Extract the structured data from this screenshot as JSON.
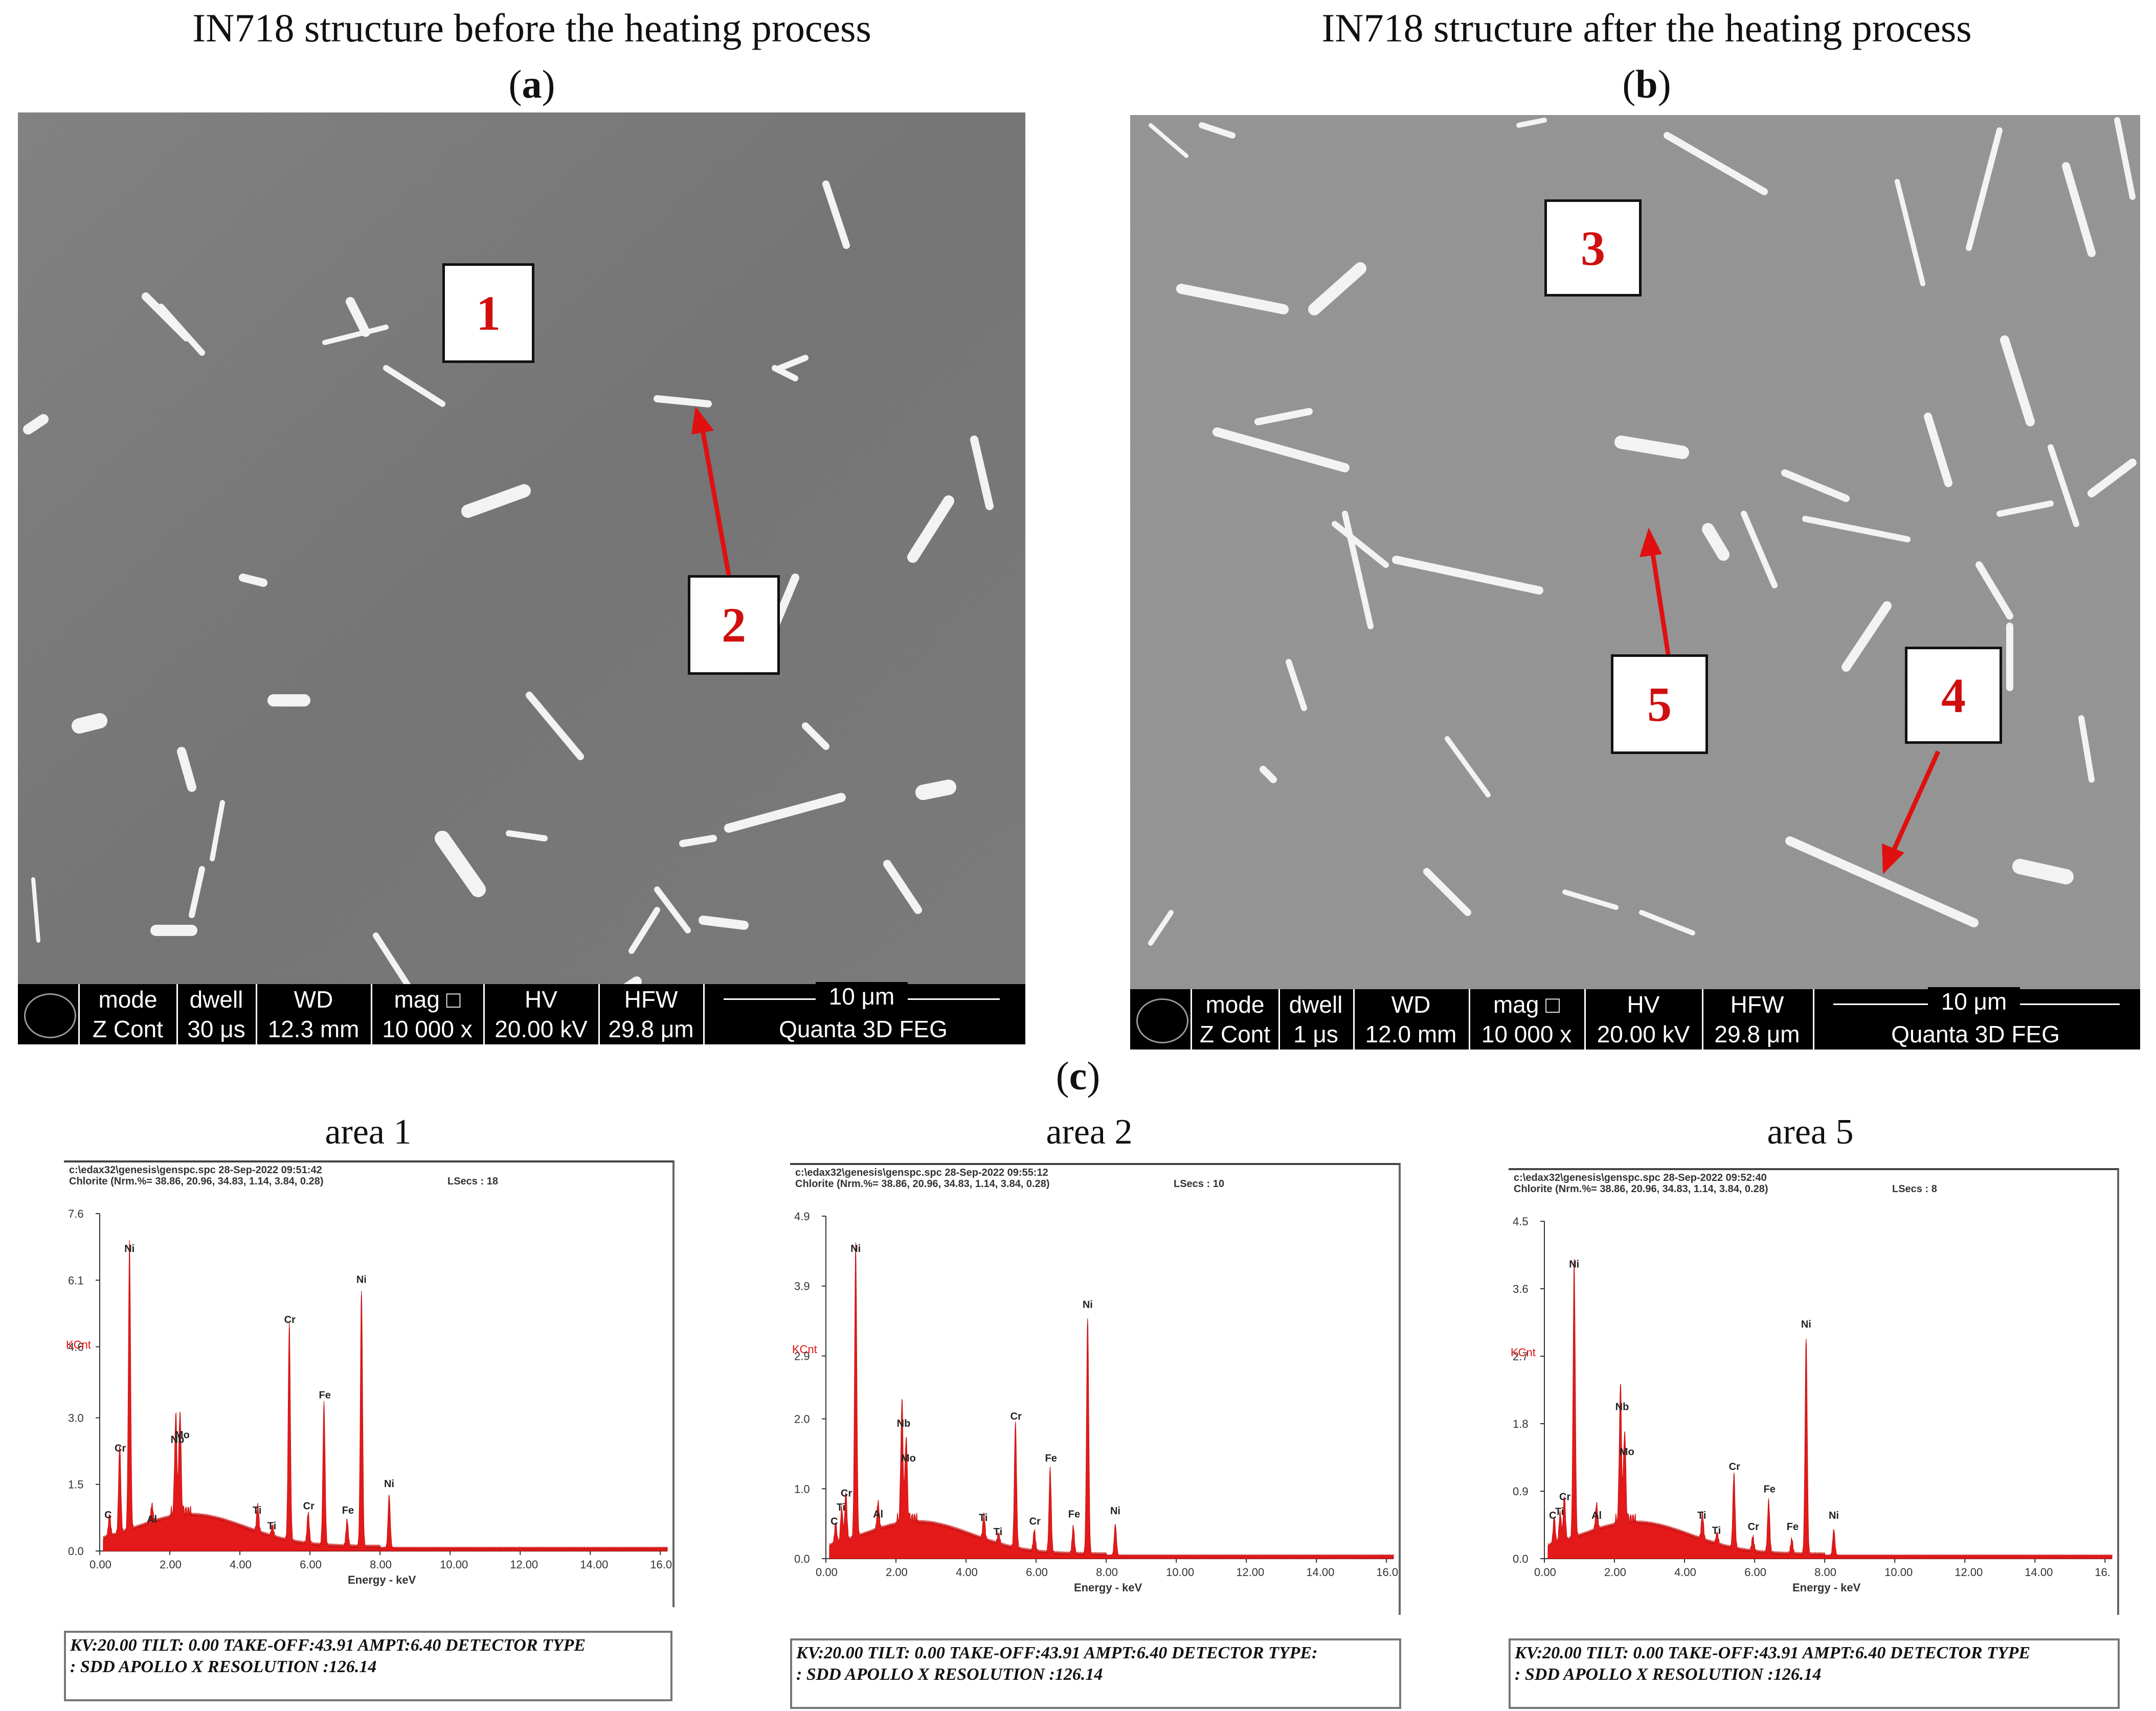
{
  "panels": {
    "a": {
      "header": "IN718 structure before the heating process",
      "label": "a"
    },
    "b": {
      "header": "IN718 structure after the heating process",
      "label": "b"
    },
    "c": {
      "label": "c"
    }
  },
  "sem_a": {
    "markers": [
      "1",
      "2"
    ],
    "databar": {
      "headers": [
        "mode",
        "dwell",
        "WD",
        "mag □",
        "HV",
        "HFW"
      ],
      "values": [
        "Z Cont",
        "30 μs",
        "12.3 mm",
        "10 000 x",
        "20.00 kV",
        "29.8 μm"
      ],
      "scale": "10 μm",
      "instrument": "Quanta 3D FEG"
    }
  },
  "sem_b": {
    "markers": [
      "3",
      "4",
      "5"
    ],
    "databar": {
      "headers": [
        "mode",
        "dwell",
        "WD",
        "mag □",
        "HV",
        "HFW"
      ],
      "values": [
        "Z Cont",
        "1 μs",
        "12.0 mm",
        "10 000 x",
        "20.00 kV",
        "29.8 μm"
      ],
      "scale": "10 μm",
      "instrument": "Quanta 3D FEG"
    }
  },
  "eds": [
    {
      "title": "area 1",
      "path": "c:\\edax32\\genesis\\genspc.spc 28-Sep-2022 09:51:42",
      "chlorite": "Chlorite (Nrm.%= 38.86, 20.96, 34.83, 1.14, 3.84, 0.28)",
      "lsecs": "LSecs : 18",
      "y_ticks": [
        "7.6",
        "6.1",
        "4.6",
        "3.0",
        "1.5",
        "0.0"
      ],
      "y_max": 7.6,
      "kcnt": "KCnt",
      "x_ticks": [
        "0.00",
        "2.00",
        "4.00",
        "6.00",
        "8.00",
        "10.00",
        "12.00",
        "14.00",
        "16.0"
      ],
      "xlabel": "Energy - keV",
      "peaks": [
        {
          "label": "Ni",
          "keV": 0.85,
          "value": 6.6
        },
        {
          "label": "C",
          "keV": 0.28,
          "value": 0.6
        },
        {
          "label": "Cr",
          "keV": 0.57,
          "value": 2.1
        },
        {
          "label": "Al",
          "keV": 1.49,
          "value": 0.5
        },
        {
          "label": "Mo",
          "keV": 2.29,
          "value": 2.4
        },
        {
          "label": "Nb",
          "keV": 2.17,
          "value": 2.3
        },
        {
          "label": "Ti",
          "keV": 4.51,
          "value": 0.7
        },
        {
          "label": "Ti",
          "keV": 4.93,
          "value": 0.35
        },
        {
          "label": "Cr",
          "keV": 5.41,
          "value": 5.0
        },
        {
          "label": "Cr",
          "keV": 5.95,
          "value": 0.8
        },
        {
          "label": "Fe",
          "keV": 6.4,
          "value": 3.3
        },
        {
          "label": "Fe",
          "keV": 7.06,
          "value": 0.7
        },
        {
          "label": "Ni",
          "keV": 7.47,
          "value": 5.9
        },
        {
          "label": "Ni",
          "keV": 8.26,
          "value": 1.3
        }
      ],
      "footer1": "KV:20.00  TILT: 0.00  TAKE-OFF:43.91  AMPT:6.40  DETECTOR TYPE",
      "footer2": ": SDD APOLLO X  RESOLUTION :126.14"
    },
    {
      "title": "area 2",
      "path": "c:\\edax32\\genesis\\genspc.spc 28-Sep-2022 09:55:12",
      "chlorite": "Chlorite (Nrm.%= 38.86, 20.96, 34.83, 1.14, 3.84, 0.28)",
      "lsecs": "LSecs : 10",
      "y_ticks": [
        "4.9",
        "3.9",
        "2.9",
        "2.0",
        "1.0",
        "0.0"
      ],
      "y_max": 4.9,
      "kcnt": "KCnt",
      "x_ticks": [
        "0.00",
        "2.00",
        "4.00",
        "6.00",
        "8.00",
        "10.00",
        "12.00",
        "14.00",
        "16.0"
      ],
      "xlabel": "Energy - keV",
      "peaks": [
        {
          "label": "Ni",
          "keV": 0.85,
          "value": 4.3
        },
        {
          "label": "C",
          "keV": 0.28,
          "value": 0.4
        },
        {
          "label": "Ti",
          "keV": 0.45,
          "value": 0.6
        },
        {
          "label": "Cr",
          "keV": 0.57,
          "value": 0.8
        },
        {
          "label": "Al",
          "keV": 1.49,
          "value": 0.5
        },
        {
          "label": "Nb",
          "keV": 2.17,
          "value": 1.8
        },
        {
          "label": "Mo",
          "keV": 2.29,
          "value": 1.3
        },
        {
          "label": "Ti",
          "keV": 4.51,
          "value": 0.45
        },
        {
          "label": "Ti",
          "keV": 4.93,
          "value": 0.25
        },
        {
          "label": "Cr",
          "keV": 5.41,
          "value": 1.9
        },
        {
          "label": "Cr",
          "keV": 5.95,
          "value": 0.4
        },
        {
          "label": "Fe",
          "keV": 6.4,
          "value": 1.3
        },
        {
          "label": "Fe",
          "keV": 7.06,
          "value": 0.5
        },
        {
          "label": "Ni",
          "keV": 7.47,
          "value": 3.5
        },
        {
          "label": "Ni",
          "keV": 8.26,
          "value": 0.55
        }
      ],
      "footer1": "KV:20.00  TILT: 0.00  TAKE-OFF:43.91  AMPT:6.40  DETECTOR TYPE:",
      "footer2": ": SDD APOLLO X  RESOLUTION :126.14"
    },
    {
      "title": "area 5",
      "path": "c:\\edax32\\genesis\\genspc.spc 28-Sep-2022 09:52:40",
      "chlorite": "Chlorite (Nrm.%= 38.86, 20.96, 34.83, 1.14, 3.84, 0.28)",
      "lsecs": "LSecs : 8",
      "y_ticks": [
        "4.5",
        "3.6",
        "2.7",
        "1.8",
        "0.9",
        "0.0"
      ],
      "y_max": 4.5,
      "kcnt": "KCnt",
      "x_ticks": [
        "0.00",
        "2.00",
        "4.00",
        "6.00",
        "8.00",
        "10.00",
        "12.00",
        "14.00",
        "16."
      ],
      "xlabel": "Energy - keV",
      "peaks": [
        {
          "label": "Ni",
          "keV": 0.85,
          "value": 3.8
        },
        {
          "label": "C",
          "keV": 0.28,
          "value": 0.45
        },
        {
          "label": "Ti",
          "keV": 0.45,
          "value": 0.5
        },
        {
          "label": "Cr",
          "keV": 0.57,
          "value": 0.7
        },
        {
          "label": "Al",
          "keV": 1.49,
          "value": 0.45
        },
        {
          "label": "Nb",
          "keV": 2.17,
          "value": 1.9
        },
        {
          "label": "Mo",
          "keV": 2.29,
          "value": 1.3
        },
        {
          "label": "Ti",
          "keV": 4.51,
          "value": 0.45
        },
        {
          "label": "Ti",
          "keV": 4.93,
          "value": 0.25
        },
        {
          "label": "Cr",
          "keV": 5.41,
          "value": 1.1
        },
        {
          "label": "Cr",
          "keV": 5.95,
          "value": 0.3
        },
        {
          "label": "Fe",
          "keV": 6.4,
          "value": 0.8
        },
        {
          "label": "Fe",
          "keV": 7.06,
          "value": 0.3
        },
        {
          "label": "Ni",
          "keV": 7.47,
          "value": 3.0
        },
        {
          "label": "Ni",
          "keV": 8.26,
          "value": 0.45
        }
      ],
      "footer1": "KV:20.00  TILT: 0.00  TAKE-OFF:43.91  AMPT:6.40  DETECTOR TYPE",
      "footer2": ": SDD APOLLO X  RESOLUTION :126.14"
    }
  ]
}
